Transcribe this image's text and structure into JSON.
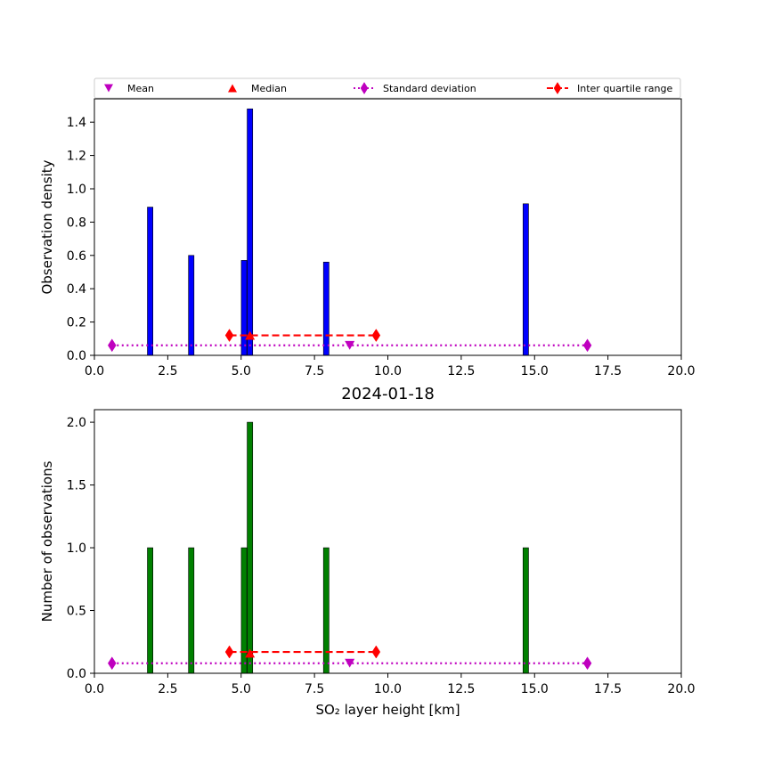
{
  "chart_data": [
    {
      "type": "bar",
      "title": "",
      "xlabel": "",
      "ylabel": "Observation density",
      "xlim": [
        0,
        20
      ],
      "ylim": [
        0,
        1.54
      ],
      "x_ticks": [
        "0.0",
        "2.5",
        "5.0",
        "7.5",
        "10.0",
        "12.5",
        "15.0",
        "17.5",
        "20.0"
      ],
      "y_ticks": [
        "0.0",
        "0.2",
        "0.4",
        "0.6",
        "0.8",
        "1.0",
        "1.2",
        "1.4"
      ],
      "bar_color": "#0000ff",
      "bars": [
        {
          "x": 1.9,
          "value": 0.89
        },
        {
          "x": 3.3,
          "value": 0.6
        },
        {
          "x": 5.1,
          "value": 0.57
        },
        {
          "x": 5.3,
          "value": 1.48
        },
        {
          "x": 7.9,
          "value": 0.56
        },
        {
          "x": 14.7,
          "value": 0.91
        }
      ],
      "stats": {
        "mean": {
          "x": 8.7,
          "y": 0.06
        },
        "median": {
          "x": 5.3,
          "y": 0.12
        },
        "std_range": {
          "x": [
            0.6,
            16.8
          ],
          "y": 0.06
        },
        "iqr": {
          "x": [
            4.6,
            9.6
          ],
          "y": 0.12
        }
      }
    },
    {
      "type": "bar",
      "title": "2024-01-18",
      "xlabel": "SO₂ layer height [km]",
      "ylabel": "Number of observations",
      "xlim": [
        0,
        20
      ],
      "ylim": [
        0,
        2.1
      ],
      "x_ticks": [
        "0.0",
        "2.5",
        "5.0",
        "7.5",
        "10.0",
        "12.5",
        "15.0",
        "17.5",
        "20.0"
      ],
      "y_ticks": [
        "0.0",
        "0.5",
        "1.0",
        "1.5",
        "2.0"
      ],
      "bar_color": "#008000",
      "bars": [
        {
          "x": 1.9,
          "value": 1
        },
        {
          "x": 3.3,
          "value": 1
        },
        {
          "x": 5.1,
          "value": 1
        },
        {
          "x": 5.3,
          "value": 2
        },
        {
          "x": 7.9,
          "value": 1
        },
        {
          "x": 14.7,
          "value": 1
        }
      ],
      "stats": {
        "mean": {
          "x": 8.7,
          "y": 0.08
        },
        "median": {
          "x": 5.3,
          "y": 0.16
        },
        "std_range": {
          "x": [
            0.6,
            16.8
          ],
          "y": 0.08
        },
        "iqr": {
          "x": [
            4.6,
            9.6
          ],
          "y": 0.17
        }
      }
    }
  ],
  "legend": {
    "placement": "top, above upper plot",
    "items": [
      {
        "label": "Mean",
        "marker": "triangle-down",
        "color": "#bf00bf"
      },
      {
        "label": "Median",
        "marker": "triangle-up",
        "color": "#ff0000"
      },
      {
        "label": "Standard deviation",
        "marker": "diamond",
        "line": "dotted",
        "color": "#bf00bf"
      },
      {
        "label": "Inter quartile range",
        "marker": "diamond",
        "line": "dashed",
        "color": "#ff0000"
      }
    ]
  },
  "colors": {
    "mean": "#bf00bf",
    "median": "#ff0000",
    "std": "#bf00bf",
    "iqr": "#ff0000"
  }
}
